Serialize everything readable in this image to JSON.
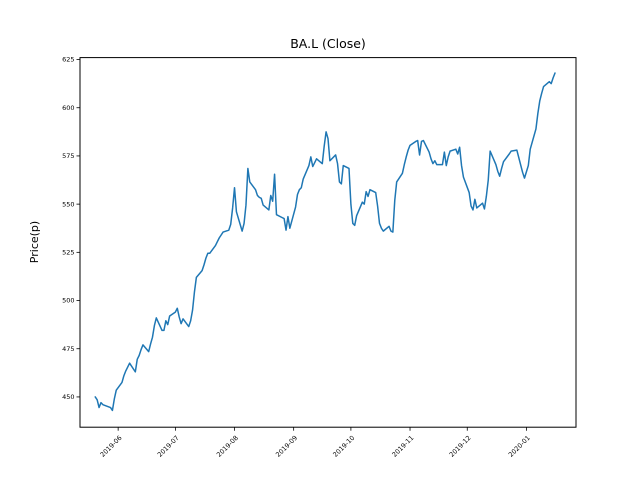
{
  "figure": {
    "background": "#ffffff",
    "spine_color": "#000000",
    "tick_color": "#000000"
  },
  "chart_data": {
    "type": "line",
    "title": "BA.L (Close)",
    "xlabel": "",
    "ylabel": "Price(p)",
    "grid": false,
    "legend": "none",
    "line_color": "#1f77b4",
    "y_ticks": [
      450,
      475,
      500,
      525,
      550,
      575,
      600,
      625
    ],
    "x_ticks": [
      "2019-06",
      "2019-07",
      "2019-08",
      "2019-09",
      "2019-10",
      "2019-11",
      "2019-12",
      "2020-01"
    ],
    "ylim": [
      434.3,
      626.0
    ],
    "xlim": [
      "2019-05-12",
      "2020-01-27"
    ],
    "series": [
      {
        "name": "Close",
        "color": "#1f77b4",
        "start_date": "2019-05-20",
        "freq": "business_day",
        "holidays": [
          "2019-05-27",
          "2019-12-25",
          "2019-12-26",
          "2020-01-01"
        ],
        "prices": [
          450.0,
          448.5,
          444.5,
          447.0,
          446.0,
          444.5,
          443.0,
          449.0,
          453.5,
          457.5,
          461.0,
          463.5,
          465.5,
          467.5,
          463.0,
          469.5,
          471.5,
          474.5,
          477.0,
          473.5,
          477.5,
          481.0,
          487.0,
          491.0,
          484.5,
          484.5,
          489.5,
          487.5,
          492.0,
          494.0,
          496.0,
          491.5,
          488.0,
          490.5,
          486.5,
          489.5,
          495.0,
          504.5,
          512.0,
          515.5,
          518.5,
          522.0,
          524.5,
          524.5,
          528.5,
          530.5,
          532.5,
          534.0,
          535.5,
          536.5,
          539.5,
          548.0,
          558.5,
          546.0,
          536.0,
          540.0,
          549.5,
          568.5,
          561.5,
          557.5,
          554.5,
          553.5,
          553.0,
          549.5,
          547.0,
          554.5,
          551.5,
          565.5,
          544.5,
          543.0,
          542.5,
          536.5,
          543.5,
          537.5,
          548.5,
          555.0,
          557.5,
          558.5,
          563.0,
          570.0,
          574.5,
          569.5,
          571.5,
          573.5,
          571.0,
          580.0,
          587.5,
          584.0,
          572.5,
          575.5,
          571.0,
          561.5,
          560.5,
          570.0,
          568.5,
          550.0,
          540.0,
          539.0,
          544.0,
          551.0,
          550.0,
          556.5,
          554.0,
          557.5,
          556.0,
          549.0,
          540.0,
          537.5,
          536.0,
          538.5,
          536.0,
          535.5,
          552.0,
          561.5,
          566.0,
          570.5,
          574.5,
          578.0,
          580.5,
          582.5,
          583.0,
          575.5,
          582.5,
          583.0,
          577.0,
          573.5,
          571.0,
          572.5,
          570.5,
          570.5,
          577.0,
          570.0,
          574.5,
          577.5,
          578.5,
          576.0,
          579.5,
          570.0,
          564.0,
          556.0,
          549.0,
          547.0,
          552.5,
          548.0,
          550.5,
          547.5,
          554.0,
          562.5,
          577.5,
          570.5,
          567.0,
          564.5,
          568.5,
          572.0,
          576.0,
          577.5,
          578.0,
          566.5,
          563.5,
          570.0,
          578.5,
          589.0,
          597.0,
          603.5,
          607.5,
          611.0,
          613.5,
          612.5,
          615.5,
          618.0
        ]
      }
    ]
  }
}
